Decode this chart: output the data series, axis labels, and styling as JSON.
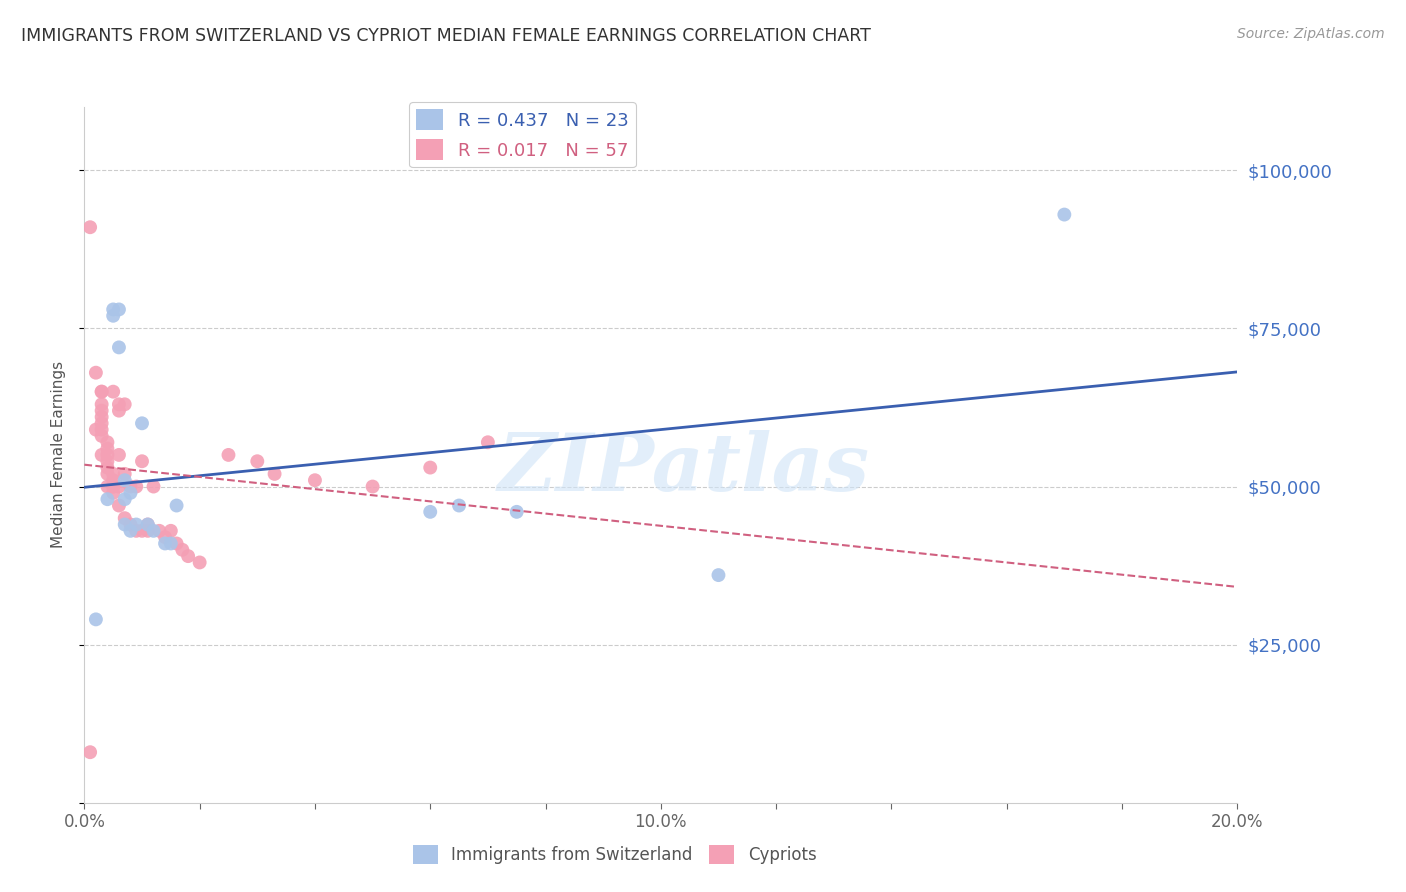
{
  "title": "IMMIGRANTS FROM SWITZERLAND VS CYPRIOT MEDIAN FEMALE EARNINGS CORRELATION CHART",
  "source": "Source: ZipAtlas.com",
  "ylabel": "Median Female Earnings",
  "xlim": [
    0.0,
    0.2
  ],
  "ylim": [
    0,
    110000
  ],
  "yticks": [
    0,
    25000,
    50000,
    75000,
    100000
  ],
  "ytick_labels": [
    "",
    "$25,000",
    "$50,000",
    "$75,000",
    "$100,000"
  ],
  "xtick_positions": [
    0.0,
    0.02,
    0.04,
    0.06,
    0.08,
    0.1,
    0.12,
    0.14,
    0.16,
    0.18,
    0.2
  ],
  "xtick_labels": [
    "0.0%",
    "",
    "",
    "",
    "",
    "10.0%",
    "",
    "",
    "",
    "",
    "20.0%"
  ],
  "watermark": "ZIPatlas",
  "legend_label1": "Immigrants from Switzerland",
  "legend_label2": "Cypriots",
  "blue_color": "#aac4e8",
  "pink_color": "#f4a0b5",
  "blue_line_color": "#3a5fb0",
  "pink_line_color": "#d06080",
  "axis_color": "#4472c4",
  "background_color": "#ffffff",
  "blue_points_x": [
    0.002,
    0.004,
    0.005,
    0.005,
    0.006,
    0.006,
    0.007,
    0.007,
    0.007,
    0.008,
    0.008,
    0.009,
    0.01,
    0.011,
    0.012,
    0.014,
    0.015,
    0.016,
    0.06,
    0.065,
    0.075,
    0.11,
    0.17
  ],
  "blue_points_y": [
    29000,
    48000,
    78000,
    77000,
    78000,
    72000,
    51000,
    48000,
    44000,
    49000,
    43000,
    44000,
    60000,
    44000,
    43000,
    41000,
    41000,
    47000,
    46000,
    47000,
    46000,
    36000,
    93000
  ],
  "pink_points_x": [
    0.001,
    0.001,
    0.002,
    0.002,
    0.003,
    0.003,
    0.003,
    0.003,
    0.003,
    0.003,
    0.003,
    0.003,
    0.003,
    0.004,
    0.004,
    0.004,
    0.004,
    0.004,
    0.004,
    0.004,
    0.005,
    0.005,
    0.005,
    0.005,
    0.005,
    0.005,
    0.006,
    0.006,
    0.006,
    0.006,
    0.006,
    0.007,
    0.007,
    0.007,
    0.008,
    0.008,
    0.009,
    0.009,
    0.01,
    0.01,
    0.011,
    0.011,
    0.012,
    0.013,
    0.014,
    0.015,
    0.016,
    0.017,
    0.018,
    0.02,
    0.025,
    0.03,
    0.033,
    0.04,
    0.05,
    0.06,
    0.07
  ],
  "pink_points_y": [
    91000,
    8000,
    68000,
    59000,
    65000,
    65000,
    63000,
    62000,
    61000,
    60000,
    59000,
    58000,
    55000,
    57000,
    56000,
    55000,
    54000,
    53000,
    52000,
    50000,
    52000,
    51000,
    50000,
    50000,
    49000,
    65000,
    63000,
    62000,
    55000,
    50000,
    47000,
    63000,
    52000,
    45000,
    50000,
    44000,
    50000,
    43000,
    54000,
    43000,
    44000,
    43000,
    50000,
    43000,
    42000,
    43000,
    41000,
    40000,
    39000,
    38000,
    55000,
    54000,
    52000,
    51000,
    50000,
    53000,
    57000
  ]
}
